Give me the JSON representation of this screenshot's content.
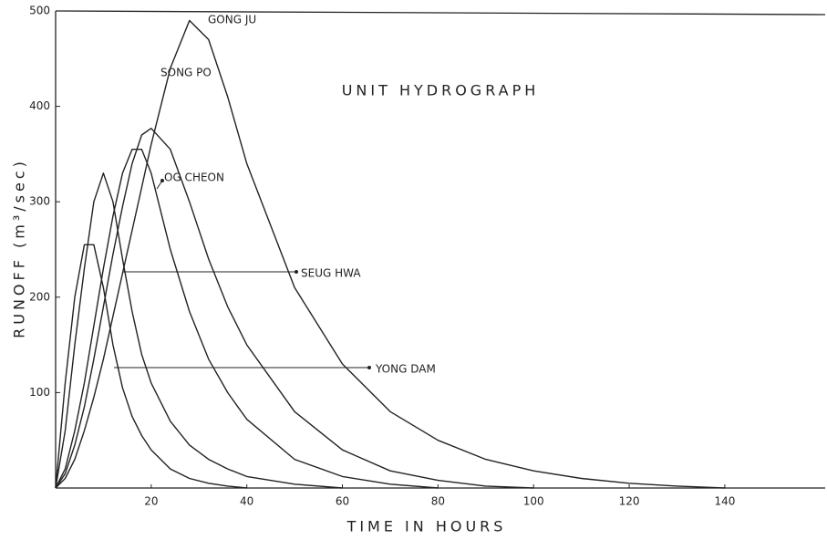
{
  "chart_data": {
    "type": "line",
    "title": "UNIT HYDROGRAPH",
    "x_label": "TIME IN HOURS",
    "y_label": "RUNOFF (m³/sec)",
    "x": [
      0,
      2,
      4,
      6,
      8,
      10,
      12,
      14,
      16,
      18,
      20,
      24,
      28,
      32,
      36,
      40,
      50,
      60,
      70,
      80,
      90,
      100,
      110,
      120,
      130,
      140
    ],
    "series": [
      {
        "name": "YONG DAM",
        "color": "#222222",
        "values": [
          0,
          110,
          200,
          255,
          255,
          210,
          150,
          105,
          75,
          55,
          40,
          20,
          10,
          5,
          2,
          0,
          null,
          null,
          null,
          null,
          null,
          null,
          null,
          null,
          null,
          null
        ]
      },
      {
        "name": "SEUG HWA",
        "color": "#222222",
        "values": [
          0,
          60,
          150,
          230,
          300,
          330,
          300,
          240,
          185,
          140,
          110,
          70,
          45,
          30,
          20,
          12,
          4,
          0,
          null,
          null,
          null,
          null,
          null,
          null,
          null,
          null
        ]
      },
      {
        "name": "OG CHEON",
        "color": "#222222",
        "values": [
          0,
          20,
          60,
          110,
          170,
          230,
          285,
          330,
          355,
          355,
          330,
          250,
          185,
          135,
          100,
          72,
          30,
          12,
          4,
          0,
          null,
          null,
          null,
          null,
          null,
          null
        ]
      },
      {
        "name": "SONG PO",
        "color": "#222222",
        "values": [
          0,
          15,
          45,
          85,
          135,
          190,
          245,
          295,
          340,
          370,
          377,
          355,
          300,
          240,
          190,
          150,
          80,
          40,
          18,
          8,
          2,
          0,
          null,
          null,
          null,
          null
        ]
      },
      {
        "name": "GONG JU",
        "color": "#222222",
        "values": [
          0,
          10,
          30,
          60,
          95,
          135,
          180,
          225,
          270,
          315,
          360,
          440,
          490,
          470,
          410,
          340,
          210,
          130,
          80,
          50,
          30,
          18,
          10,
          5,
          2,
          0
        ]
      }
    ],
    "xlim": [
      0,
      161
    ],
    "ylim": [
      0,
      500
    ],
    "xticks": [
      20,
      40,
      60,
      80,
      100,
      120,
      140
    ],
    "yticks": [
      100,
      200,
      300,
      400,
      500
    ]
  }
}
